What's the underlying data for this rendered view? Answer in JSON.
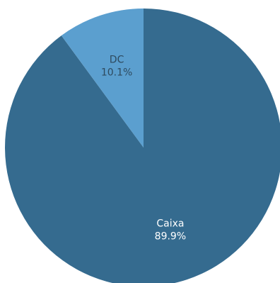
{
  "chart_data": {
    "type": "pie",
    "start_angle_deg": 0,
    "direction": "clockwise",
    "slices": [
      {
        "label": "Caixa",
        "value": 89.9,
        "display": "89.9%",
        "color": "#356b8f",
        "label_color": "#ffffff"
      },
      {
        "label": "DC",
        "value": 10.1,
        "display": "10.1%",
        "color": "#5b9fcf",
        "label_color": "#2e4a5e"
      }
    ]
  }
}
